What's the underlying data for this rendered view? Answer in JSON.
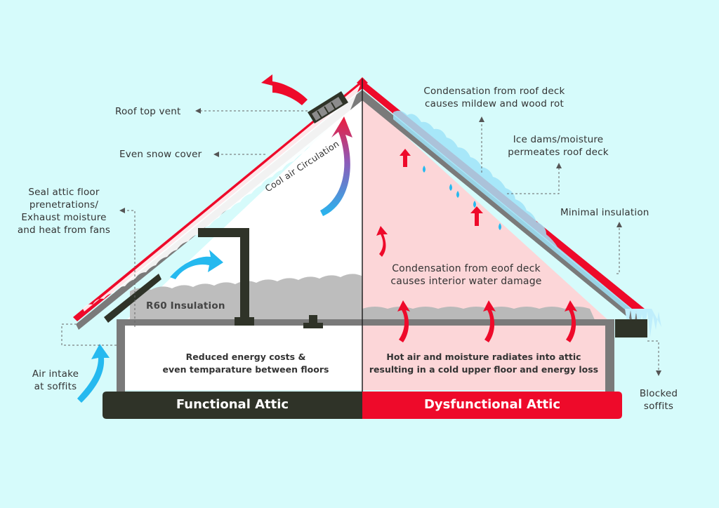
{
  "labels": {
    "roof_top_vent": "Roof top vent",
    "even_snow_cover": "Even snow cover",
    "seal_attic": [
      "Seal attic floor",
      "prenetrations/",
      "Exhaust moisture",
      "and heat from fans"
    ],
    "air_intake": [
      "Air intake",
      "at soffits"
    ],
    "cool_air": "Cool air Circulation",
    "r60": "R60 Insulation",
    "condensation_roof": [
      "Condensation from roof deck",
      "causes mildew and wood rot"
    ],
    "ice_dams": [
      "Ice dams/moisture",
      "permeates roof deck"
    ],
    "minimal_insulation": "Minimal insulation",
    "condensation_interior": [
      "Condensation from eoof deck",
      "causes interior water damage"
    ],
    "blocked_soffits": [
      "Blocked",
      "soffits"
    ]
  },
  "rooms": {
    "functional_text": [
      "Reduced energy costs &",
      "even temparature between floors"
    ],
    "dysfunctional_text": [
      "Hot air and moisture radiates into attic",
      "resulting in a cold upper floor and energy loss"
    ]
  },
  "banners": {
    "functional": "Functional Attic",
    "dysfunctional": "Dysfunctional Attic"
  },
  "colors": {
    "background": "#d6fbfb",
    "roof_red": "#ee0a2a",
    "wall_gray": "#777777",
    "dark_olive": "#2f3328",
    "attic_pink": "#fcd6d8",
    "ice_blue": "#9fe3f8",
    "arrow_blue": "#25b9ef"
  }
}
